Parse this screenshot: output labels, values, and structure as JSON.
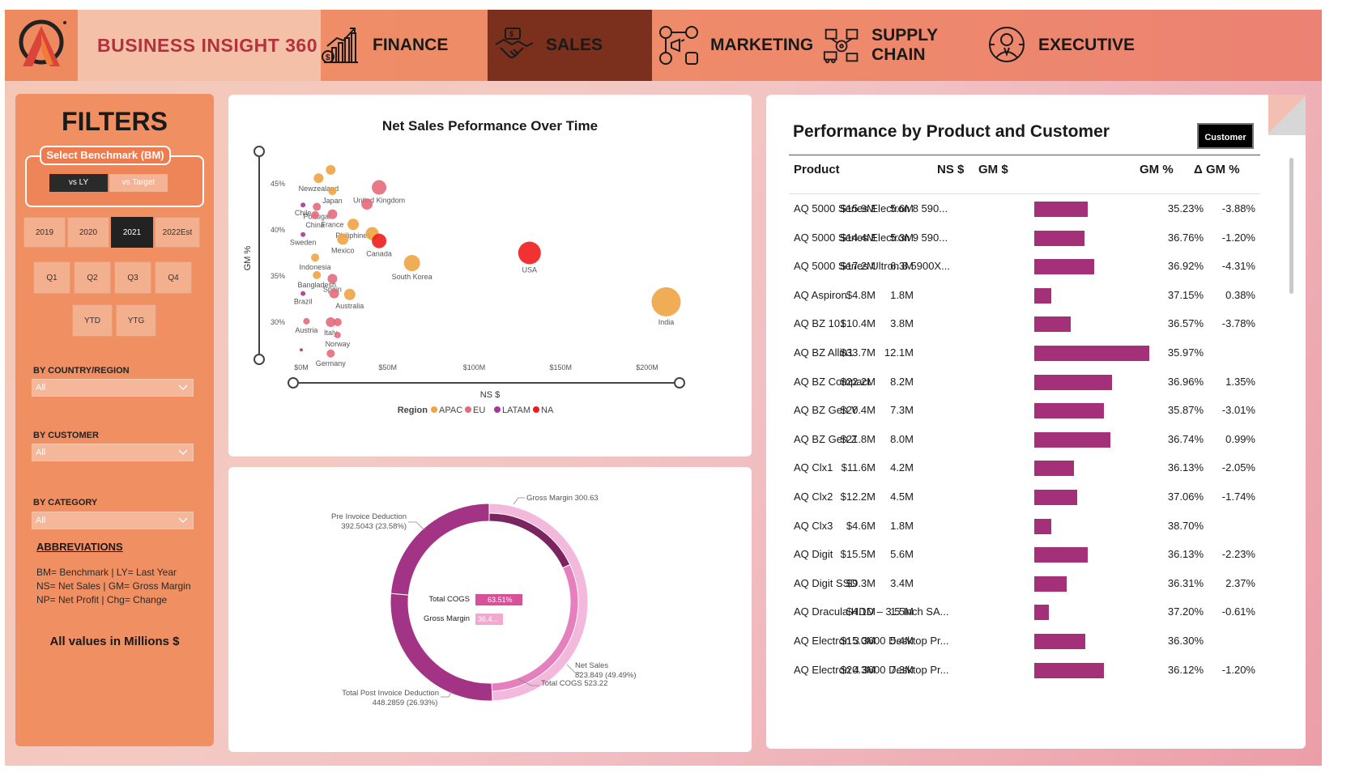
{
  "brand": {
    "name": "BUSINESS INSIGHT 360"
  },
  "nav": {
    "items": [
      {
        "label": "FINANCE",
        "icon": "finance-chart-icon"
      },
      {
        "label": "SALES",
        "icon": "handshake-icon",
        "active": true
      },
      {
        "label": "MARKETING",
        "icon": "social-media-icon"
      },
      {
        "label": "SUPPLY CHAIN",
        "icon": "supply-chain-icon"
      },
      {
        "label": "EXECUTIVE",
        "icon": "executive-icon"
      }
    ]
  },
  "filters": {
    "title": "FILTERS",
    "benchmark_label": "Select Benchmark (BM)",
    "benchmark_options": [
      "vs LY",
      "vs Target"
    ],
    "benchmark_selected": "vs LY",
    "years": [
      "2019",
      "2020",
      "2021",
      "2022Est"
    ],
    "year_selected": "2021",
    "quarters": [
      "Q1",
      "Q2",
      "Q3",
      "Q4"
    ],
    "periods": [
      "YTD",
      "YTG"
    ],
    "country_label": "BY COUNTRY/REGION",
    "country_value": "All",
    "customer_label": "BY CUSTOMER",
    "customer_value": "All",
    "category_label": "BY CATEGORY",
    "category_value": "All",
    "abbr_title": "ABBREVIATIONS",
    "abbr_lines": [
      "BM= Benchmark | LY= Last Year",
      "NS= Net Sales | GM= Gross Margin",
      "NP= Net Profit | Chg= Change"
    ],
    "all_values_note": "All values in Millions $"
  },
  "colors": {
    "APAC": "#f0a444",
    "EU": "#e46a7b",
    "LATAM": "#a33a98",
    "NA": "#ee1c1c",
    "bar": "#a5307a"
  },
  "scatter": {
    "title": "Net Sales Peformance Over Time",
    "xlabel": "NS $",
    "ylabel": "GM %",
    "legend_title": "Region",
    "legend": [
      "APAC",
      "EU",
      "LATAM",
      "NA"
    ],
    "chart_data": {
      "type": "scatter",
      "x_ticks": [
        "$0M",
        "$50M",
        "$100M",
        "$150M",
        "$200M"
      ],
      "y_ticks": [
        "45%",
        "40%",
        "35%",
        "30%"
      ],
      "points": [
        {
          "label": "",
          "region": "APAC",
          "ns": 17,
          "gm": 46.5,
          "size": 6
        },
        {
          "label": "Newzealand",
          "region": "APAC",
          "ns": 10,
          "gm": 45.6,
          "size": 6
        },
        {
          "label": "Japan",
          "region": "APAC",
          "ns": 18,
          "gm": 44.2,
          "size": 5
        },
        {
          "label": "Portugal",
          "region": "EU",
          "ns": 9,
          "gm": 42.5,
          "size": 5
        },
        {
          "label": "United Kingdom",
          "region": "EU",
          "ns": 45,
          "gm": 44.6,
          "size": 9
        },
        {
          "label": "",
          "region": "EU",
          "ns": 38,
          "gm": 42.8,
          "size": 7
        },
        {
          "label": "Chile",
          "region": "LATAM",
          "ns": 1,
          "gm": 42.7,
          "size": 3
        },
        {
          "label": "France",
          "region": "EU",
          "ns": 18,
          "gm": 41.7,
          "size": 6
        },
        {
          "label": "China",
          "region": "EU",
          "ns": 8,
          "gm": 41.6,
          "size": 5
        },
        {
          "label": "Philiphines",
          "region": "APAC",
          "ns": 30,
          "gm": 40.6,
          "size": 7
        },
        {
          "label": "Sweden",
          "region": "LATAM",
          "ns": 1,
          "gm": 39.5,
          "size": 3
        },
        {
          "label": "",
          "region": "APAC",
          "ns": 41,
          "gm": 39.6,
          "size": 8
        },
        {
          "label": "Mexico",
          "region": "APAC",
          "ns": 24,
          "gm": 39.0,
          "size": 7
        },
        {
          "label": "Canada",
          "region": "NA",
          "ns": 45,
          "gm": 38.8,
          "size": 9
        },
        {
          "label": "Indonesia",
          "region": "APAC",
          "ns": 8,
          "gm": 37.0,
          "size": 5
        },
        {
          "label": "South Korea",
          "region": "APAC",
          "ns": 64,
          "gm": 36.4,
          "size": 10
        },
        {
          "label": "USA",
          "region": "NA",
          "ns": 132,
          "gm": 37.5,
          "size": 14
        },
        {
          "label": "Bangladesh",
          "region": "APAC",
          "ns": 9,
          "gm": 35.1,
          "size": 5
        },
        {
          "label": "Spain",
          "region": "EU",
          "ns": 18,
          "gm": 34.7,
          "size": 6
        },
        {
          "label": "Brazil",
          "region": "LATAM",
          "ns": 1,
          "gm": 33.1,
          "size": 3
        },
        {
          "label": "",
          "region": "EU",
          "ns": 19,
          "gm": 33.1,
          "size": 6
        },
        {
          "label": "Australia",
          "region": "APAC",
          "ns": 28,
          "gm": 33.0,
          "size": 7
        },
        {
          "label": "India",
          "region": "APAC",
          "ns": 211,
          "gm": 32.2,
          "size": 18
        },
        {
          "label": "Austria",
          "region": "EU",
          "ns": 3,
          "gm": 30.1,
          "size": 4
        },
        {
          "label": "Italy",
          "region": "EU",
          "ns": 17,
          "gm": 30.0,
          "size": 6
        },
        {
          "label": "",
          "region": "EU",
          "ns": 21,
          "gm": 30.0,
          "size": 5
        },
        {
          "label": "Norway",
          "region": "EU",
          "ns": 21,
          "gm": 28.6,
          "size": 4
        },
        {
          "label": "Germany",
          "region": "EU",
          "ns": 17,
          "gm": 26.6,
          "size": 5
        },
        {
          "label": "",
          "region": "LATAM",
          "ns": 0,
          "gm": 27.0,
          "size": 2
        }
      ]
    }
  },
  "donut": {
    "center_labels": [
      {
        "label": "Total COGS",
        "value": "63.51%"
      },
      {
        "label": "Gross Margin",
        "value": "36.4..."
      }
    ],
    "annotations": {
      "pre_invoice": [
        "Pre Invoice Deduction",
        "392.5043 (23.58%)"
      ],
      "gross_margin": "Gross Margin 300.63",
      "net_sales": [
        "Net Sales",
        "823.849 (49.49%)"
      ],
      "total_cogs": "Total COGS 523.22",
      "post_invoice": [
        "Total Post Invoice Deduction",
        "448.2859 (26.93%)"
      ]
    },
    "chart_data": {
      "type": "pie",
      "outer": [
        {
          "name": "Pre Invoice Deduction",
          "value": 392.5043
        },
        {
          "name": "Net Sales",
          "value": 823.849
        },
        {
          "name": "Total Post Invoice Deduction",
          "value": 448.2859
        }
      ],
      "inner": [
        {
          "name": "Gross Margin",
          "value": 300.63
        },
        {
          "name": "Total COGS",
          "value": 523.22
        }
      ]
    }
  },
  "table": {
    "title": "Performance by Product and Customer",
    "toggle_label": "Customer",
    "headers": {
      "product": "Product",
      "ns": "NS $",
      "gm": "GM $",
      "gmp": "GM %",
      "dgm": "Δ GM %"
    },
    "rows": [
      {
        "product": "AQ 5000 Series Electron 8 590...",
        "ns": "$15.9M",
        "gm": "5.6M",
        "gm_val": 5.6,
        "gmp": "35.23%",
        "dgm": "-3.88%"
      },
      {
        "product": "AQ 5000 Series Electron 9 590...",
        "ns": "$14.4M",
        "gm": "5.3M",
        "gm_val": 5.3,
        "gmp": "36.76%",
        "dgm": "-1.20%"
      },
      {
        "product": "AQ 5000 Series Ultron 8 5900X...",
        "ns": "$17.2M",
        "gm": "6.3M",
        "gm_val": 6.3,
        "gmp": "36.92%",
        "dgm": "-4.31%"
      },
      {
        "product": "AQ Aspiron",
        "ns": "$4.8M",
        "gm": "1.8M",
        "gm_val": 1.8,
        "gmp": "37.15%",
        "dgm": "0.38%"
      },
      {
        "product": "AQ BZ 101",
        "ns": "$10.4M",
        "gm": "3.8M",
        "gm_val": 3.8,
        "gmp": "36.57%",
        "dgm": "-3.78%"
      },
      {
        "product": "AQ BZ Allin1",
        "ns": "$33.7M",
        "gm": "12.1M",
        "gm_val": 12.1,
        "gmp": "35.97%",
        "dgm": ""
      },
      {
        "product": "AQ BZ Compact",
        "ns": "$22.2M",
        "gm": "8.2M",
        "gm_val": 8.2,
        "gmp": "36.96%",
        "dgm": "1.35%"
      },
      {
        "product": "AQ BZ Gen Y",
        "ns": "$20.4M",
        "gm": "7.3M",
        "gm_val": 7.3,
        "gmp": "35.87%",
        "dgm": "-3.01%"
      },
      {
        "product": "AQ BZ Gen Z",
        "ns": "$21.8M",
        "gm": "8.0M",
        "gm_val": 8.0,
        "gmp": "36.74%",
        "dgm": "0.99%"
      },
      {
        "product": "AQ Clx1",
        "ns": "$11.6M",
        "gm": "4.2M",
        "gm_val": 4.2,
        "gmp": "36.13%",
        "dgm": "-2.05%"
      },
      {
        "product": "AQ Clx2",
        "ns": "$12.2M",
        "gm": "4.5M",
        "gm_val": 4.5,
        "gmp": "37.06%",
        "dgm": "-1.74%"
      },
      {
        "product": "AQ Clx3",
        "ns": "$4.6M",
        "gm": "1.8M",
        "gm_val": 1.8,
        "gmp": "38.70%",
        "dgm": ""
      },
      {
        "product": "AQ Digit",
        "ns": "$15.5M",
        "gm": "5.6M",
        "gm_val": 5.6,
        "gmp": "36.13%",
        "dgm": "-2.23%"
      },
      {
        "product": "AQ Digit SSD",
        "ns": "$9.3M",
        "gm": "3.4M",
        "gm_val": 3.4,
        "gmp": "36.31%",
        "dgm": "2.37%"
      },
      {
        "product": "AQ Dracula HDD – 3.5 Inch SA...",
        "ns": "$4.1M",
        "gm": "1.5M",
        "gm_val": 1.5,
        "gmp": "37.20%",
        "dgm": "-0.61%"
      },
      {
        "product": "AQ Electron 3 3600 Desktop Pr...",
        "ns": "$15.0M",
        "gm": "5.4M",
        "gm_val": 5.4,
        "gmp": "36.30%",
        "dgm": ""
      },
      {
        "product": "AQ Electron 4 3600 Desktop Pr...",
        "ns": "$20.3M",
        "gm": "7.3M",
        "gm_val": 7.3,
        "gmp": "36.12%",
        "dgm": "-1.20%"
      }
    ]
  }
}
